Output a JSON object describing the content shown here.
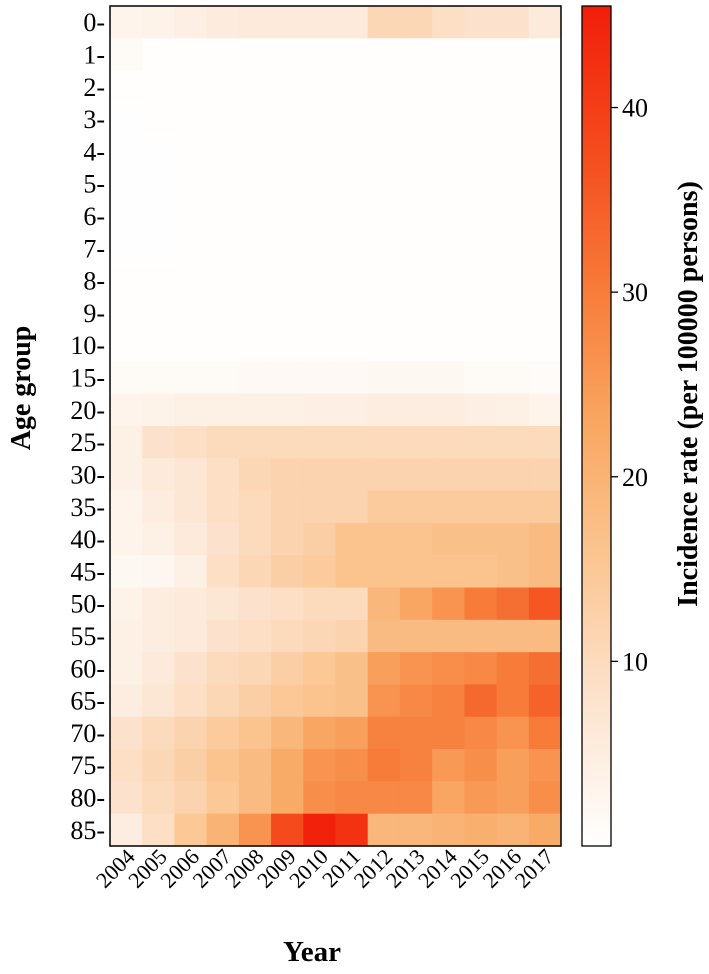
{
  "chart_data": {
    "type": "heatmap",
    "xlabel": "Year",
    "ylabel": "Age group",
    "colorbar_label": "Incidence rate (per 100000 persons)",
    "colorbar_ticks": [
      10,
      20,
      30,
      40
    ],
    "color_range": [
      0,
      45.5
    ],
    "colormap": [
      "#ffffff",
      "#fce4d0",
      "#fbc795",
      "#f8a862",
      "#f77a38",
      "#f44a1c",
      "#f21e0a"
    ],
    "x": [
      "2004",
      "2005",
      "2006",
      "2007",
      "2008",
      "2009",
      "2010",
      "2011",
      "2012",
      "2013",
      "2014",
      "2015",
      "2016",
      "2017"
    ],
    "y": [
      "0-",
      "1-",
      "2-",
      "3-",
      "4-",
      "5-",
      "6-",
      "7-",
      "8-",
      "9-",
      "10-",
      "15-",
      "20-",
      "25-",
      "30-",
      "35-",
      "40-",
      "45-",
      "50-",
      "55-",
      "60-",
      "65-",
      "70-",
      "75-",
      "80-",
      "85-"
    ],
    "values": [
      [
        3,
        3.5,
        4.5,
        5.5,
        6,
        6,
        6,
        6,
        11,
        11,
        9,
        8,
        8,
        6
      ],
      [
        1.5,
        0.3,
        0.3,
        0.3,
        0.3,
        0.3,
        0.3,
        0.3,
        0.3,
        0.3,
        0.3,
        0.3,
        0.3,
        0.3
      ],
      [
        0.3,
        0.3,
        0.4,
        0.3,
        0.3,
        0.3,
        0.3,
        0.3,
        0.3,
        0.3,
        0.3,
        0.3,
        0.3,
        0.3
      ],
      [
        0.2,
        0.3,
        0.3,
        0.4,
        0.4,
        0.3,
        0.3,
        0.3,
        0.3,
        0.3,
        0.3,
        0.3,
        0.3,
        0.3
      ],
      [
        0.2,
        0.2,
        0.3,
        0.3,
        0.3,
        0.3,
        0.3,
        0.3,
        0.3,
        0.3,
        0.3,
        0.3,
        0.3,
        0.3
      ],
      [
        0.2,
        0.2,
        0.3,
        0.3,
        0.3,
        0.3,
        0.3,
        0.3,
        0.3,
        0.3,
        0.3,
        0.3,
        0.3,
        0.3
      ],
      [
        0.2,
        0.2,
        0.3,
        0.4,
        0.4,
        0.3,
        0.3,
        0.3,
        0.3,
        0.3,
        0.3,
        0.3,
        0.3,
        0.3
      ],
      [
        0.2,
        0.2,
        0.3,
        0.3,
        0.3,
        0.3,
        0.3,
        0.3,
        0.3,
        0.3,
        0.3,
        0.3,
        0.3,
        0.3
      ],
      [
        0.3,
        0.3,
        0.3,
        0.3,
        0.3,
        0.3,
        0.3,
        0.3,
        0.3,
        0.3,
        0.3,
        0.3,
        0.3,
        0.3
      ],
      [
        0.3,
        0.3,
        0.3,
        0.3,
        0.3,
        0.3,
        0.3,
        0.3,
        0.3,
        0.3,
        0.3,
        0.3,
        0.3,
        0.3
      ],
      [
        0.4,
        0.4,
        0.4,
        0.4,
        0.4,
        0.4,
        0.4,
        0.4,
        0.4,
        0.4,
        0.4,
        0.4,
        0.4,
        0.4
      ],
      [
        1.5,
        1.5,
        1.5,
        1.5,
        1.8,
        1.8,
        1.8,
        1.8,
        2,
        2,
        2,
        1.5,
        1.5,
        1.2
      ],
      [
        3,
        3.5,
        4,
        4,
        4,
        4,
        4.5,
        4.5,
        5,
        5,
        5,
        4.5,
        4,
        3
      ],
      [
        4,
        8,
        9,
        10,
        10,
        10,
        10,
        10,
        10,
        10,
        10,
        10,
        10,
        10
      ],
      [
        4,
        6,
        7,
        9,
        11,
        12,
        12,
        12,
        12,
        12,
        12,
        12,
        12,
        12
      ],
      [
        3,
        5,
        7,
        9,
        10,
        12,
        12,
        12,
        14,
        14,
        14,
        14,
        14,
        14
      ],
      [
        3,
        4,
        6,
        8,
        10,
        12,
        13,
        16,
        16,
        16,
        17,
        17,
        17,
        18
      ],
      [
        2,
        2.5,
        4,
        9,
        11,
        13,
        14,
        16,
        16,
        16,
        16,
        16,
        17,
        18
      ],
      [
        3.5,
        5,
        6,
        7,
        8,
        9,
        10,
        10,
        19,
        23,
        26,
        30,
        32,
        36
      ],
      [
        4,
        5,
        6,
        8,
        9,
        10,
        11,
        12,
        18,
        18,
        18,
        18,
        18,
        18
      ],
      [
        4,
        6,
        8,
        10,
        11,
        13,
        15,
        17,
        24,
        26,
        27,
        28,
        30,
        32
      ],
      [
        5,
        7,
        9,
        11,
        13,
        15,
        16,
        17,
        26,
        28,
        29,
        33,
        30,
        34
      ],
      [
        8,
        10,
        12,
        14,
        16,
        19,
        23,
        24,
        29,
        29,
        29,
        28,
        26,
        30
      ],
      [
        9,
        11,
        13,
        16,
        18,
        22,
        26,
        27,
        30,
        29,
        25,
        27,
        24,
        26
      ],
      [
        8,
        10,
        12,
        15,
        18,
        22,
        27,
        28,
        28,
        28,
        23,
        25,
        24,
        27
      ],
      [
        5,
        9,
        15,
        20,
        26,
        38,
        45,
        42,
        19,
        19,
        20,
        21,
        20,
        22
      ]
    ]
  }
}
